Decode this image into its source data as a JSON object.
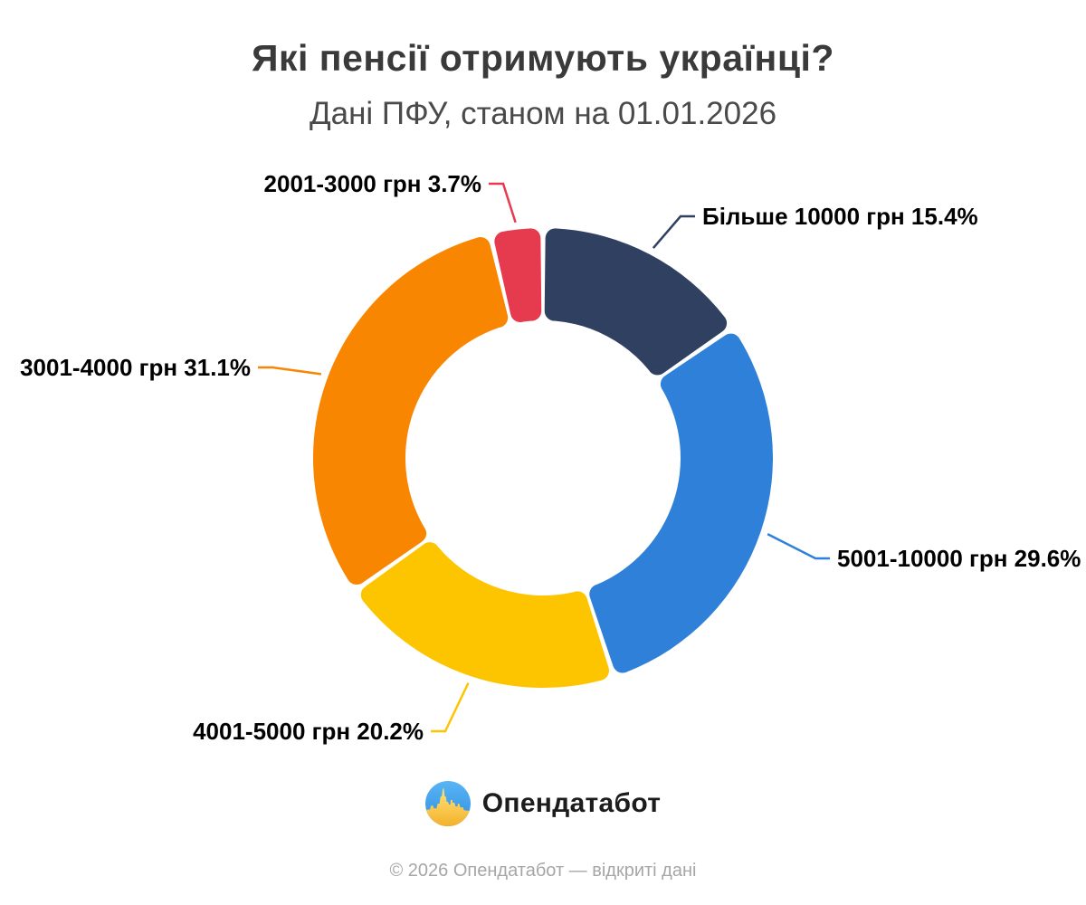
{
  "chart_data": {
    "type": "pie",
    "subtype": "donut",
    "title": "Які пенсії отримують українці?",
    "subtitle": "Дані ПФУ, станом на 01.01.2026",
    "unit": "%",
    "start_angle_deg": -13.32,
    "legend": "none",
    "slices": [
      {
        "label": "2001-3000 грн",
        "value": 3.7,
        "display": "2001-3000 грн 3.7%",
        "color": "#e63a4e"
      },
      {
        "label": "Більше 10000 грн",
        "value": 15.4,
        "display": "Більше 10000 грн 15.4%",
        "color": "#2f4060"
      },
      {
        "label": "5001-10000 грн",
        "value": 29.6,
        "display": "5001-10000 грн 29.6%",
        "color": "#2e80d9"
      },
      {
        "label": "4001-5000 грн",
        "value": 20.2,
        "display": "4001-5000 грн 20.2%",
        "color": "#fdc400"
      },
      {
        "label": "3001-4000 грн",
        "value": 31.1,
        "display": "3001-4000 грн 31.1%",
        "color": "#f98600"
      }
    ]
  },
  "logo": {
    "text": "Опендатабот",
    "icon": "opendatabot-flag-skyline-circle",
    "icon_colors": {
      "blue_top": "#5ab5f4",
      "blue_bottom": "#2e8ee2",
      "yellow_top": "#ffe47a",
      "yellow_bottom": "#f3ae26"
    }
  },
  "footer": {
    "text": "© 2026 Опендатабот — відкриті дані"
  }
}
